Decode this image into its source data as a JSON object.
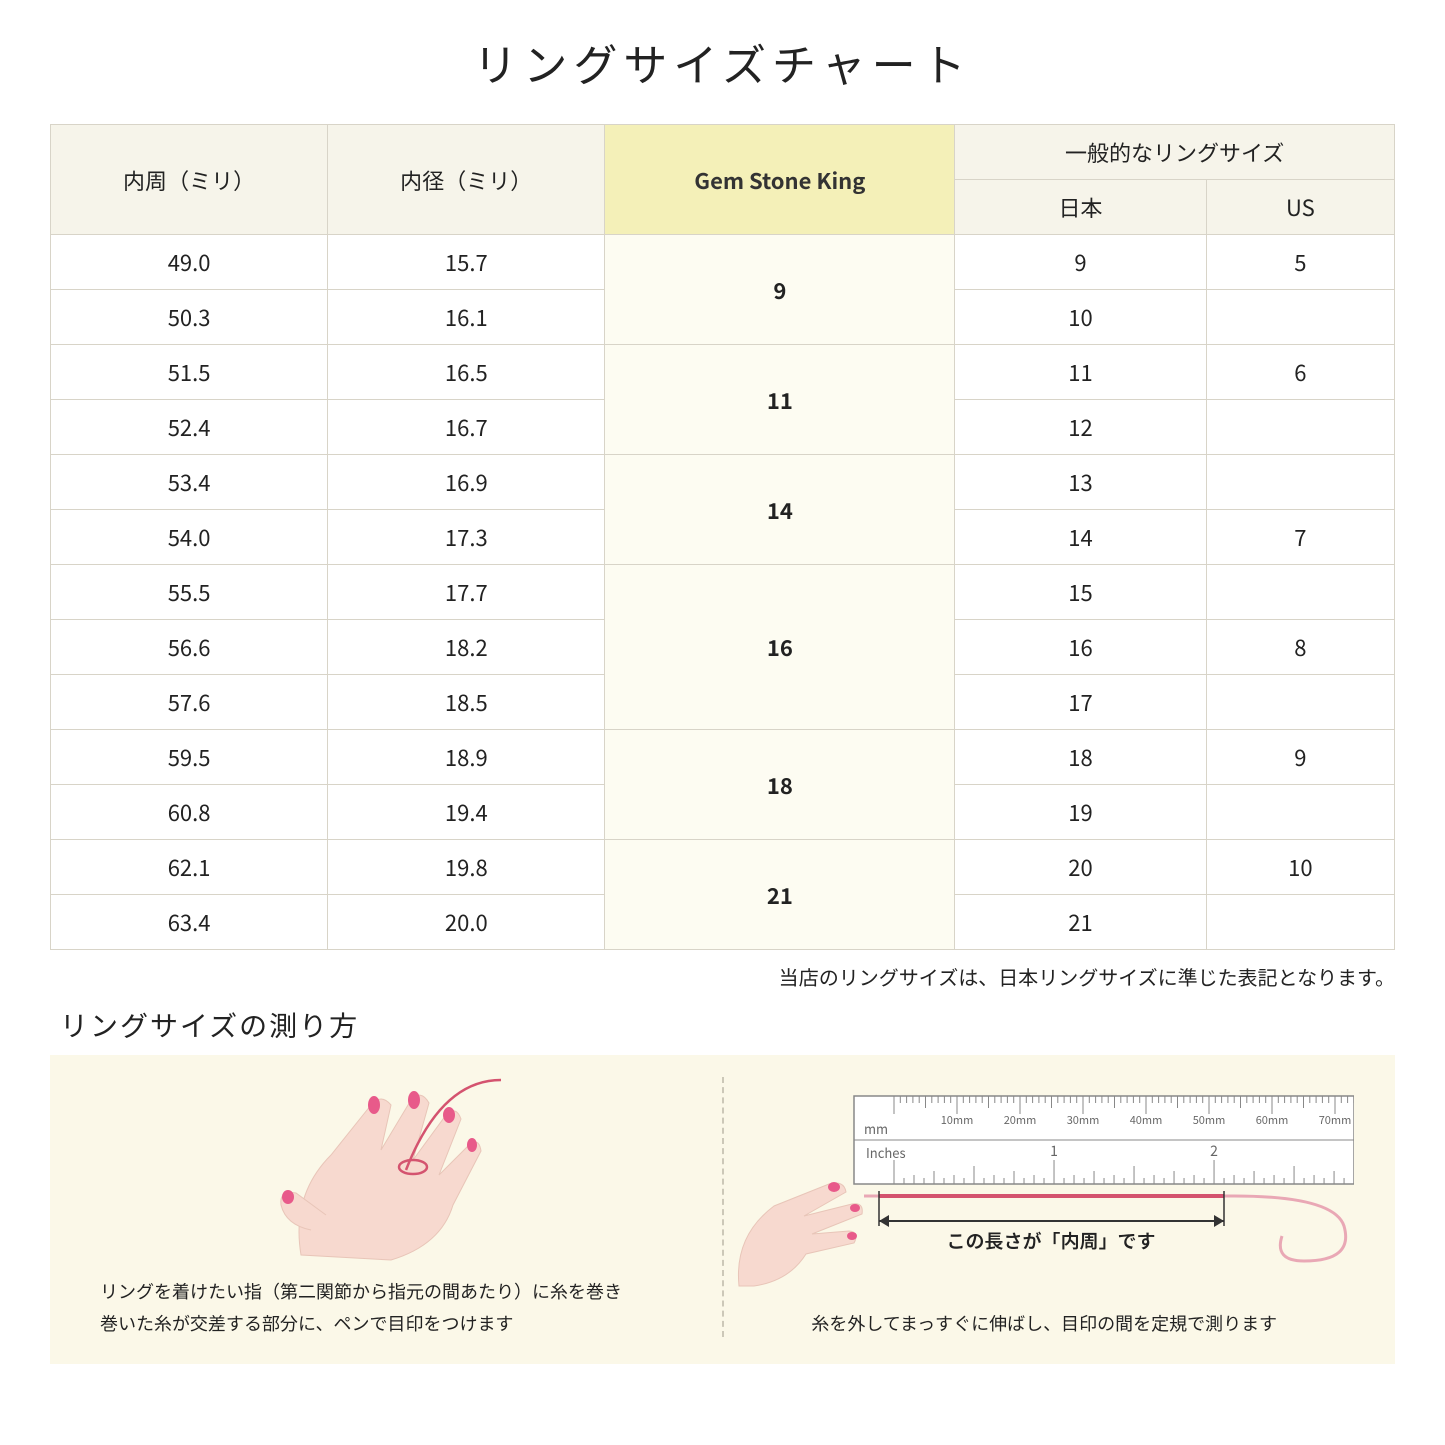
{
  "title": "リングサイズチャート",
  "table": {
    "headers": {
      "circumference": "内周（ミリ）",
      "diameter": "内径（ミリ）",
      "brand": "Gem Stone King",
      "general": "一般的なリングサイズ",
      "japan": "日本",
      "us": "US"
    },
    "groups": [
      {
        "brand": "9",
        "rows": [
          {
            "c": "49.0",
            "d": "15.7",
            "jp": "9",
            "us": "5"
          },
          {
            "c": "50.3",
            "d": "16.1",
            "jp": "10",
            "us": ""
          }
        ]
      },
      {
        "brand": "11",
        "rows": [
          {
            "c": "51.5",
            "d": "16.5",
            "jp": "11",
            "us": "6"
          },
          {
            "c": "52.4",
            "d": "16.7",
            "jp": "12",
            "us": ""
          }
        ]
      },
      {
        "brand": "14",
        "rows": [
          {
            "c": "53.4",
            "d": "16.9",
            "jp": "13",
            "us": ""
          },
          {
            "c": "54.0",
            "d": "17.3",
            "jp": "14",
            "us": "7"
          }
        ]
      },
      {
        "brand": "16",
        "rows": [
          {
            "c": "55.5",
            "d": "17.7",
            "jp": "15",
            "us": ""
          },
          {
            "c": "56.6",
            "d": "18.2",
            "jp": "16",
            "us": "8"
          },
          {
            "c": "57.6",
            "d": "18.5",
            "jp": "17",
            "us": ""
          }
        ]
      },
      {
        "brand": "18",
        "rows": [
          {
            "c": "59.5",
            "d": "18.9",
            "jp": "18",
            "us": "9"
          },
          {
            "c": "60.8",
            "d": "19.4",
            "jp": "19",
            "us": ""
          }
        ]
      },
      {
        "brand": "21",
        "rows": [
          {
            "c": "62.1",
            "d": "19.8",
            "jp": "20",
            "us": "10"
          },
          {
            "c": "63.4",
            "d": "20.0",
            "jp": "21",
            "us": ""
          }
        ]
      }
    ]
  },
  "note": "当店のリングサイズは、日本リングサイズに準じた表記となります。",
  "howto": {
    "title": "リングサイズの測り方",
    "left_caption": "リングを着けたい指（第二関節から指元の間あたり）に糸を巻き\n巻いた糸が交差する部分に、ペンで目印をつけます",
    "right_label": "この長さが「内周」です",
    "right_caption": "糸を外してまっすぐに伸ばし、目印の間を定規で測ります",
    "ruler": {
      "mm_label": "mm",
      "inches_label": "Inches",
      "mm_marks": [
        "10mm",
        "20mm",
        "30mm",
        "40mm",
        "50mm",
        "60mm",
        "70mm"
      ],
      "inch_marks": [
        "1",
        "2"
      ]
    }
  },
  "colors": {
    "header_bg": "#f6f4ea",
    "highlight_header_bg": "#f4f0b8",
    "highlight_cell_bg": "#fdfcf2",
    "border": "#d8d4c8",
    "howto_bg": "#fbf8e8",
    "hand_skin": "#f7d9cf",
    "nail": "#e85a8a",
    "thread": "#d4536f",
    "ruler_stroke": "#888"
  }
}
